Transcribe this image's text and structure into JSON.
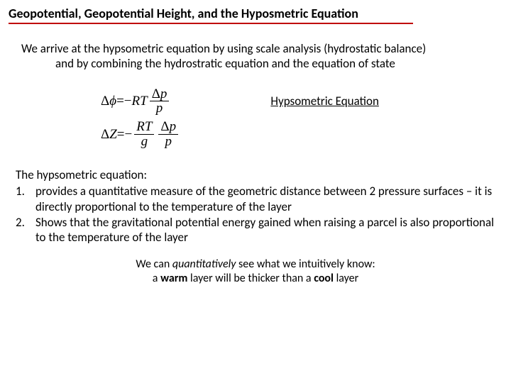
{
  "title": "Geopotential, Geopotential Height, and the Hyposmetric Equation",
  "intro_line1": "We arrive at the hypsometric equation by using scale analysis (hydrostatic balance)",
  "intro_line2": "and by combining the hydrostratic equation and the equation of state",
  "eq1": {
    "lhs_delta": "Δ",
    "lhs_var": "ϕ",
    "eq": " = ",
    "minus": "−",
    "R": "R",
    "T": "T",
    "frac_num_delta": "Δ",
    "frac_num_p": "p",
    "frac_den": "p"
  },
  "eq_label": "Hypsometric Equation",
  "eq2": {
    "lhs_delta": "Δ",
    "lhs_var": "Z",
    "eq": " = ",
    "minus": "−",
    "frac1_num": "RT",
    "frac1_den": "g",
    "frac2_num_delta": "Δ",
    "frac2_num_p": "p",
    "frac2_den": "p"
  },
  "list_intro": "The hypsometric equation:",
  "items": [
    {
      "n": "1.",
      "t": "provides a quantitative measure of the geometric distance between 2 pressure surfaces – it is directly proportional to the temperature of the layer"
    },
    {
      "n": "2.",
      "t": "Shows that the gravitational potential energy gained when raising a parcel is also proportional to the temperature of the layer"
    }
  ],
  "footer_line1_a": "We can ",
  "footer_line1_em": "quantitatively",
  "footer_line1_b": " see what we intuitively know:",
  "footer_line2_a": "a ",
  "footer_line2_warm": "warm",
  "footer_line2_b": " layer will be thicker than a ",
  "footer_line2_cool": "cool",
  "footer_line2_c": " layer",
  "colors": {
    "title_underline": "#c00000",
    "text": "#000000",
    "bg": "#ffffff"
  },
  "fonts": {
    "body": "Calibri",
    "math": "Times New Roman",
    "title_size_pt": 14,
    "body_size_pt": 13
  }
}
